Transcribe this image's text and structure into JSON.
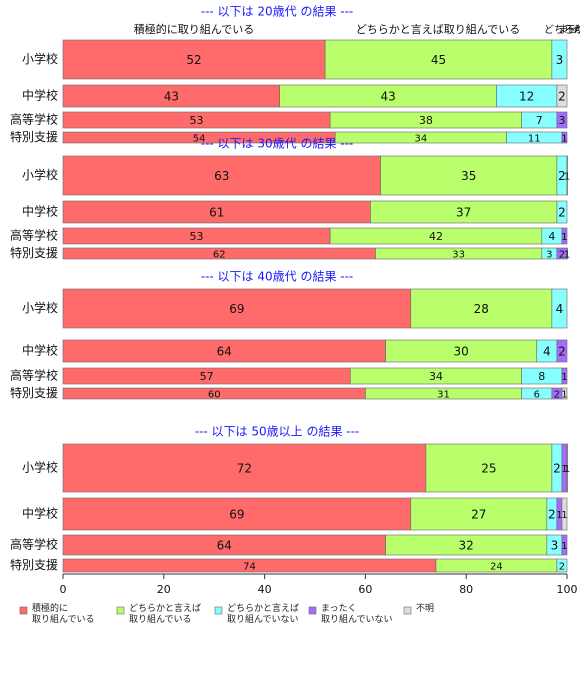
{
  "chart_data": {
    "type": "bar",
    "orientation": "horizontal",
    "stacked": true,
    "xlim": [
      0,
      100
    ],
    "xticks": [
      "0",
      "20",
      "40",
      "60",
      "80",
      "100"
    ],
    "top_labels": [
      "積極的に取り組んでいる",
      "どちらかと言えば取り組んでいる",
      "どちらかと言えば取り組んでいない",
      "まったく取り組んでいない",
      "不明"
    ],
    "groups": [
      {
        "heading": "--- 以下は 20歳代 の結果 ---",
        "rows": [
          {
            "label": "小学校",
            "values": [
              52,
              45,
              3,
              0,
              0
            ]
          },
          {
            "label": "中学校",
            "values": [
              43,
              43,
              12,
              0,
              2
            ]
          },
          {
            "label": "高等学校",
            "values": [
              53,
              38,
              7,
              3,
              0
            ]
          },
          {
            "label": "特別支援",
            "values": [
              54,
              34,
              11,
              1,
              0
            ]
          }
        ]
      },
      {
        "heading": "--- 以下は 30歳代 の結果 ---",
        "rows": [
          {
            "label": "小学校",
            "values": [
              63,
              35,
              2,
              1,
              0
            ]
          },
          {
            "label": "中学校",
            "values": [
              61,
              37,
              2,
              0,
              0
            ]
          },
          {
            "label": "高等学校",
            "values": [
              53,
              42,
              4,
              1,
              0
            ]
          },
          {
            "label": "特別支援",
            "values": [
              62,
              33,
              3,
              2,
              1
            ]
          }
        ]
      },
      {
        "heading": "--- 以下は 40歳代 の結果 ---",
        "rows": [
          {
            "label": "小学校",
            "values": [
              69,
              28,
              4,
              0,
              0
            ]
          },
          {
            "label": "中学校",
            "values": [
              64,
              30,
              4,
              2,
              0
            ]
          },
          {
            "label": "高等学校",
            "values": [
              57,
              34,
              8,
              1,
              0
            ]
          },
          {
            "label": "特別支援",
            "values": [
              60,
              31,
              6,
              2,
              1
            ]
          }
        ]
      },
      {
        "heading": "--- 以下は 50歳以上 の結果 ---",
        "rows": [
          {
            "label": "小学校",
            "values": [
              72,
              25,
              2,
              1,
              1
            ]
          },
          {
            "label": "中学校",
            "values": [
              69,
              27,
              2,
              1,
              1
            ]
          },
          {
            "label": "高等学校",
            "values": [
              64,
              32,
              3,
              1,
              0
            ]
          },
          {
            "label": "特別支援",
            "values": [
              74,
              24,
              2,
              0,
              0
            ]
          }
        ]
      }
    ],
    "legend": {
      "placement": "bottom",
      "entries": [
        {
          "label": "積極的に\n取り組んでいる",
          "color": "#ff6b6b"
        },
        {
          "label": "どちらかと言えば\n取り組んでいる",
          "color": "#b8ff6b"
        },
        {
          "label": "どちらかと言えば\n取り組んでいない",
          "color": "#87ffff"
        },
        {
          "label": "まったく\n取り組んでいない",
          "color": "#a46bff"
        },
        {
          "label": "不明",
          "color": "#dddddd"
        }
      ]
    },
    "colors": {
      "heading": "#1a1aff",
      "bar_border": "#666666",
      "axis": "#333333"
    }
  }
}
